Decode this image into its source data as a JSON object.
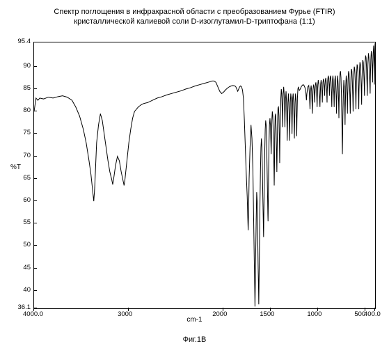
{
  "title_line1": "Спектр поглощения в инфракрасной области с преобразованием Фурье (FTIR)",
  "title_line2": "кристаллической калиевой соли D-изоглутамил-D-триптофана (1:1)",
  "caption": "Фиг.1В",
  "ylabel": "%T",
  "xlabel": "cm-1",
  "chart": {
    "type": "line",
    "xlim": [
      4000.0,
      400.0
    ],
    "ylim": [
      36.1,
      95.4
    ],
    "yticks": [
      36.1,
      40,
      45,
      50,
      55,
      60,
      65,
      70,
      75,
      80,
      85,
      90,
      95.4
    ],
    "xticks": [
      4000.0,
      3000,
      2000,
      1500,
      1000,
      500,
      400.0
    ],
    "xtick_labels": [
      "4000.0",
      "3000",
      "2000",
      "1500",
      "1000",
      "500",
      "400.0"
    ],
    "ytick_labels": [
      "36.1",
      "40",
      "45",
      "50",
      "55",
      "60",
      "65",
      "70",
      "75",
      "80",
      "85",
      "90",
      "95.4"
    ],
    "line_color": "#000000",
    "line_width": 1,
    "background_color": "#ffffff",
    "border_color": "#000000",
    "title_fontsize": 11,
    "label_fontsize": 10,
    "tick_fontsize": 9.5,
    "data": [
      [
        4000,
        80
      ],
      [
        3980,
        83
      ],
      [
        3960,
        82.5
      ],
      [
        3940,
        83
      ],
      [
        3900,
        82.8
      ],
      [
        3850,
        83.2
      ],
      [
        3800,
        83
      ],
      [
        3750,
        83.3
      ],
      [
        3700,
        83.5
      ],
      [
        3650,
        83.2
      ],
      [
        3600,
        82.5
      ],
      [
        3560,
        81
      ],
      [
        3520,
        79
      ],
      [
        3480,
        76
      ],
      [
        3450,
        73
      ],
      [
        3420,
        69
      ],
      [
        3400,
        66
      ],
      [
        3380,
        62
      ],
      [
        3370,
        60
      ],
      [
        3360,
        63
      ],
      [
        3350,
        68
      ],
      [
        3340,
        73
      ],
      [
        3320,
        77
      ],
      [
        3300,
        79.5
      ],
      [
        3280,
        78
      ],
      [
        3260,
        75
      ],
      [
        3240,
        72
      ],
      [
        3220,
        69
      ],
      [
        3200,
        66.5
      ],
      [
        3180,
        64.8
      ],
      [
        3170,
        63.7
      ],
      [
        3160,
        65
      ],
      [
        3140,
        68
      ],
      [
        3120,
        70
      ],
      [
        3100,
        69
      ],
      [
        3080,
        66.5
      ],
      [
        3060,
        64.5
      ],
      [
        3050,
        63.5
      ],
      [
        3040,
        65
      ],
      [
        3020,
        69
      ],
      [
        3000,
        73
      ],
      [
        2980,
        76
      ],
      [
        2960,
        78.5
      ],
      [
        2940,
        80
      ],
      [
        2920,
        80.5
      ],
      [
        2900,
        81
      ],
      [
        2870,
        81.5
      ],
      [
        2840,
        81.8
      ],
      [
        2800,
        82
      ],
      [
        2750,
        82.5
      ],
      [
        2700,
        83
      ],
      [
        2650,
        83.3
      ],
      [
        2600,
        83.7
      ],
      [
        2550,
        84
      ],
      [
        2500,
        84.3
      ],
      [
        2450,
        84.6
      ],
      [
        2400,
        85
      ],
      [
        2350,
        85.3
      ],
      [
        2300,
        85.7
      ],
      [
        2250,
        86
      ],
      [
        2200,
        86.3
      ],
      [
        2150,
        86.6
      ],
      [
        2120,
        86.8
      ],
      [
        2100,
        86.8
      ],
      [
        2080,
        86.5
      ],
      [
        2060,
        85.5
      ],
      [
        2040,
        84.5
      ],
      [
        2020,
        84
      ],
      [
        2000,
        84.3
      ],
      [
        1980,
        84.8
      ],
      [
        1960,
        85.2
      ],
      [
        1940,
        85.5
      ],
      [
        1920,
        85.7
      ],
      [
        1900,
        85.8
      ],
      [
        1880,
        85.7
      ],
      [
        1870,
        85.5
      ],
      [
        1860,
        85
      ],
      [
        1850,
        84.5
      ],
      [
        1840,
        85
      ],
      [
        1830,
        85.5
      ],
      [
        1820,
        85.7
      ],
      [
        1810,
        85.5
      ],
      [
        1800,
        84.8
      ],
      [
        1790,
        83
      ],
      [
        1780,
        78
      ],
      [
        1770,
        72
      ],
      [
        1760,
        66
      ],
      [
        1750,
        61
      ],
      [
        1745,
        57
      ],
      [
        1740,
        53.5
      ],
      [
        1735,
        58
      ],
      [
        1730,
        65
      ],
      [
        1720,
        72
      ],
      [
        1710,
        77
      ],
      [
        1700,
        74
      ],
      [
        1690,
        67
      ],
      [
        1685,
        60
      ],
      [
        1680,
        53
      ],
      [
        1675,
        46
      ],
      [
        1670,
        39.5
      ],
      [
        1668,
        36.5
      ],
      [
        1665,
        41
      ],
      [
        1660,
        49
      ],
      [
        1655,
        56
      ],
      [
        1650,
        62
      ],
      [
        1645,
        60
      ],
      [
        1640,
        53
      ],
      [
        1635,
        46
      ],
      [
        1630,
        40
      ],
      [
        1628,
        37
      ],
      [
        1625,
        42
      ],
      [
        1620,
        51
      ],
      [
        1615,
        60
      ],
      [
        1610,
        67
      ],
      [
        1605,
        72
      ],
      [
        1600,
        74
      ],
      [
        1595,
        72
      ],
      [
        1590,
        67
      ],
      [
        1585,
        61
      ],
      [
        1580,
        55
      ],
      [
        1577,
        52
      ],
      [
        1575,
        56
      ],
      [
        1570,
        64
      ],
      [
        1565,
        71
      ],
      [
        1560,
        76
      ],
      [
        1555,
        78
      ],
      [
        1550,
        77
      ],
      [
        1545,
        73
      ],
      [
        1540,
        67
      ],
      [
        1535,
        61
      ],
      [
        1532,
        57
      ],
      [
        1530,
        55.5
      ],
      [
        1527,
        60
      ],
      [
        1524,
        67
      ],
      [
        1520,
        73
      ],
      [
        1515,
        77
      ],
      [
        1510,
        78.5
      ],
      [
        1505,
        77
      ],
      [
        1500,
        73
      ],
      [
        1497,
        70.5
      ],
      [
        1494,
        74
      ],
      [
        1490,
        78
      ],
      [
        1485,
        80
      ],
      [
        1480,
        79
      ],
      [
        1475,
        75
      ],
      [
        1470,
        70
      ],
      [
        1467,
        66.5
      ],
      [
        1465,
        63.5
      ],
      [
        1462,
        68
      ],
      [
        1460,
        74
      ],
      [
        1455,
        79
      ],
      [
        1450,
        79.5
      ],
      [
        1445,
        76
      ],
      [
        1440,
        70.5
      ],
      [
        1437,
        66.5
      ],
      [
        1434,
        71
      ],
      [
        1430,
        77
      ],
      [
        1425,
        80.8
      ],
      [
        1420,
        81
      ],
      [
        1415,
        79
      ],
      [
        1410,
        73.5
      ],
      [
        1407,
        68.5
      ],
      [
        1405,
        73
      ],
      [
        1400,
        79
      ],
      [
        1395,
        83
      ],
      [
        1390,
        85
      ],
      [
        1385,
        84
      ],
      [
        1380,
        80
      ],
      [
        1377,
        76.5
      ],
      [
        1375,
        80
      ],
      [
        1370,
        84
      ],
      [
        1365,
        85.5
      ],
      [
        1360,
        84
      ],
      [
        1355,
        80
      ],
      [
        1352,
        76.5
      ],
      [
        1350,
        79
      ],
      [
        1345,
        83
      ],
      [
        1340,
        84.5
      ],
      [
        1335,
        82
      ],
      [
        1330,
        77
      ],
      [
        1328,
        73.5
      ],
      [
        1325,
        77
      ],
      [
        1320,
        82
      ],
      [
        1315,
        84
      ],
      [
        1310,
        82
      ],
      [
        1305,
        77
      ],
      [
        1302,
        73.5
      ],
      [
        1300,
        77
      ],
      [
        1295,
        82
      ],
      [
        1290,
        84
      ],
      [
        1285,
        83
      ],
      [
        1280,
        79
      ],
      [
        1277,
        75
      ],
      [
        1274,
        79
      ],
      [
        1270,
        83
      ],
      [
        1265,
        84
      ],
      [
        1260,
        82
      ],
      [
        1255,
        77.5
      ],
      [
        1252,
        74
      ],
      [
        1250,
        77
      ],
      [
        1245,
        82
      ],
      [
        1240,
        84
      ],
      [
        1235,
        82.5
      ],
      [
        1230,
        78
      ],
      [
        1227,
        74.5
      ],
      [
        1225,
        78
      ],
      [
        1220,
        83
      ],
      [
        1215,
        85
      ],
      [
        1210,
        85.5
      ],
      [
        1205,
        85
      ],
      [
        1200,
        84.7
      ],
      [
        1190,
        85
      ],
      [
        1180,
        85.5
      ],
      [
        1170,
        85.8
      ],
      [
        1160,
        86
      ],
      [
        1150,
        85.8
      ],
      [
        1140,
        85.3
      ],
      [
        1130,
        84
      ],
      [
        1125,
        82.5
      ],
      [
        1120,
        84
      ],
      [
        1110,
        85.5
      ],
      [
        1100,
        85.8
      ],
      [
        1095,
        84.5
      ],
      [
        1090,
        82
      ],
      [
        1087,
        80.5
      ],
      [
        1085,
        82.5
      ],
      [
        1080,
        85
      ],
      [
        1075,
        85.8
      ],
      [
        1070,
        84.5
      ],
      [
        1065,
        81.5
      ],
      [
        1062,
        79.5
      ],
      [
        1060,
        82
      ],
      [
        1055,
        85
      ],
      [
        1050,
        86
      ],
      [
        1045,
        85.5
      ],
      [
        1040,
        83.5
      ],
      [
        1037,
        82
      ],
      [
        1035,
        84
      ],
      [
        1030,
        86
      ],
      [
        1025,
        86.5
      ],
      [
        1020,
        85.5
      ],
      [
        1015,
        83
      ],
      [
        1012,
        81
      ],
      [
        1010,
        83
      ],
      [
        1005,
        86
      ],
      [
        1000,
        87
      ],
      [
        995,
        86.3
      ],
      [
        990,
        84.5
      ],
      [
        985,
        82.5
      ],
      [
        982,
        81
      ],
      [
        980,
        83
      ],
      [
        975,
        86
      ],
      [
        970,
        87
      ],
      [
        965,
        86.3
      ],
      [
        960,
        84
      ],
      [
        957,
        82
      ],
      [
        955,
        84
      ],
      [
        950,
        86.5
      ],
      [
        945,
        87.3
      ],
      [
        940,
        86.8
      ],
      [
        935,
        85
      ],
      [
        932,
        83.5
      ],
      [
        930,
        85.5
      ],
      [
        925,
        87
      ],
      [
        920,
        87.5
      ],
      [
        915,
        86.5
      ],
      [
        910,
        84
      ],
      [
        907,
        82
      ],
      [
        905,
        84.5
      ],
      [
        900,
        87
      ],
      [
        895,
        88
      ],
      [
        890,
        87.5
      ],
      [
        885,
        85.5
      ],
      [
        882,
        83.5
      ],
      [
        880,
        85.5
      ],
      [
        875,
        87.5
      ],
      [
        870,
        88
      ],
      [
        865,
        86.5
      ],
      [
        860,
        83.5
      ],
      [
        857,
        81
      ],
      [
        855,
        83.5
      ],
      [
        850,
        87
      ],
      [
        845,
        88
      ],
      [
        840,
        86.5
      ],
      [
        835,
        83.5
      ],
      [
        832,
        81
      ],
      [
        830,
        84
      ],
      [
        825,
        87
      ],
      [
        820,
        88
      ],
      [
        815,
        86
      ],
      [
        810,
        82.5
      ],
      [
        807,
        79.5
      ],
      [
        805,
        82.5
      ],
      [
        800,
        86.5
      ],
      [
        795,
        88
      ],
      [
        790,
        86
      ],
      [
        785,
        82
      ],
      [
        782,
        78.5
      ],
      [
        780,
        82
      ],
      [
        775,
        86.5
      ],
      [
        770,
        88.5
      ],
      [
        765,
        89
      ],
      [
        760,
        87.5
      ],
      [
        755,
        83.5
      ],
      [
        752,
        80
      ],
      [
        749,
        76
      ],
      [
        747,
        73
      ],
      [
        745,
        70.5
      ],
      [
        743,
        74
      ],
      [
        740,
        79
      ],
      [
        735,
        84
      ],
      [
        730,
        87
      ],
      [
        725,
        85.5
      ],
      [
        720,
        81
      ],
      [
        717,
        77
      ],
      [
        715,
        80.5
      ],
      [
        710,
        85.5
      ],
      [
        705,
        88
      ],
      [
        700,
        87
      ],
      [
        695,
        83
      ],
      [
        692,
        79.5
      ],
      [
        690,
        83
      ],
      [
        685,
        87
      ],
      [
        680,
        89
      ],
      [
        675,
        88.5
      ],
      [
        670,
        86
      ],
      [
        665,
        82.5
      ],
      [
        662,
        79.5
      ],
      [
        660,
        83
      ],
      [
        655,
        87.5
      ],
      [
        650,
        89.5
      ],
      [
        645,
        89
      ],
      [
        640,
        86.5
      ],
      [
        635,
        83
      ],
      [
        632,
        80
      ],
      [
        630,
        83.5
      ],
      [
        625,
        88
      ],
      [
        620,
        90
      ],
      [
        615,
        89.5
      ],
      [
        610,
        87
      ],
      [
        605,
        83.5
      ],
      [
        602,
        80.5
      ],
      [
        600,
        84
      ],
      [
        595,
        88.5
      ],
      [
        590,
        90.5
      ],
      [
        585,
        90
      ],
      [
        580,
        87.5
      ],
      [
        575,
        83.5
      ],
      [
        572,
        80.5
      ],
      [
        570,
        84.5
      ],
      [
        565,
        89
      ],
      [
        560,
        91
      ],
      [
        555,
        90.5
      ],
      [
        550,
        88
      ],
      [
        545,
        84.5
      ],
      [
        542,
        81.5
      ],
      [
        540,
        85.5
      ],
      [
        535,
        89.5
      ],
      [
        530,
        91.5
      ],
      [
        525,
        91
      ],
      [
        520,
        89
      ],
      [
        515,
        86
      ],
      [
        512,
        83.5
      ],
      [
        510,
        87
      ],
      [
        505,
        91
      ],
      [
        500,
        92.5
      ],
      [
        495,
        92
      ],
      [
        490,
        89.5
      ],
      [
        485,
        86
      ],
      [
        482,
        83.5
      ],
      [
        480,
        87
      ],
      [
        475,
        91
      ],
      [
        470,
        93
      ],
      [
        465,
        92
      ],
      [
        460,
        89
      ],
      [
        455,
        86
      ],
      [
        452,
        84
      ],
      [
        450,
        87.5
      ],
      [
        445,
        91.5
      ],
      [
        440,
        93.5
      ],
      [
        435,
        92.5
      ],
      [
        430,
        89.5
      ],
      [
        427,
        86.5
      ],
      [
        425,
        89.5
      ],
      [
        420,
        93
      ],
      [
        415,
        94.7
      ],
      [
        412,
        93.2
      ],
      [
        409,
        89
      ],
      [
        407,
        86
      ],
      [
        405,
        90
      ],
      [
        402,
        94
      ],
      [
        400,
        95.2
      ]
    ]
  }
}
